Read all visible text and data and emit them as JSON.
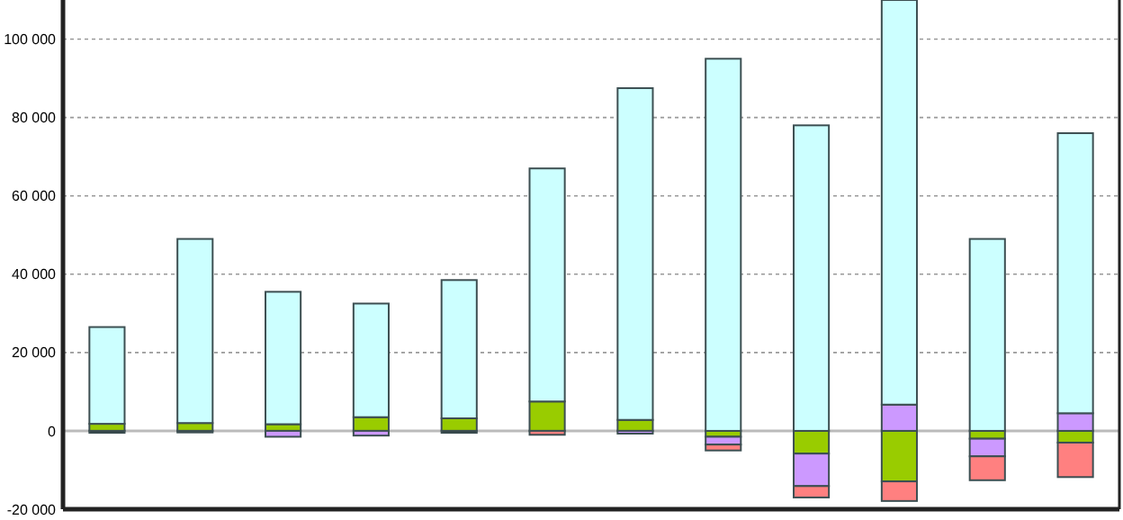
{
  "chart_data": {
    "type": "bar",
    "stacked": true,
    "categories": [
      null,
      null,
      null,
      null,
      null,
      null,
      null,
      null,
      null,
      null,
      null,
      null
    ],
    "series": [
      {
        "color": "#99cc00",
        "values": [
          1800,
          2000,
          1700,
          3500,
          3200,
          7500,
          2800,
          -1500,
          -5800,
          -12900,
          -2000,
          -3000
        ]
      },
      {
        "color": "#cc99ff",
        "values": [
          null,
          null,
          -1500,
          -1200,
          null,
          null,
          -700,
          -2000,
          -8300,
          6700,
          -4500,
          4500
        ]
      },
      {
        "color": "#ff8080",
        "values": [
          null,
          null,
          null,
          null,
          null,
          -1000,
          null,
          -1500,
          -2900,
          -5000,
          -6100,
          -8800
        ]
      },
      {
        "color": "#000000",
        "values": [
          -500,
          -400,
          null,
          null,
          -500,
          null,
          null,
          null,
          null,
          null,
          null,
          null
        ]
      },
      {
        "color": "#ccffff",
        "values": [
          24700,
          47000,
          33800,
          29000,
          35300,
          59500,
          84700,
          95000,
          78000,
          103300,
          49000,
          71500
        ]
      }
    ],
    "ylim": [
      -20000,
      110000
    ],
    "yticks": [
      {
        "value": -20000,
        "label": "-20 000"
      },
      {
        "value": 0,
        "label": "0"
      },
      {
        "value": 20000,
        "label": "20 000"
      },
      {
        "value": 40000,
        "label": "40 000"
      },
      {
        "value": 60000,
        "label": "60 000"
      },
      {
        "value": 80000,
        "label": "80 000"
      },
      {
        "value": 100000,
        "label": "100 000"
      }
    ],
    "grid": "y"
  }
}
